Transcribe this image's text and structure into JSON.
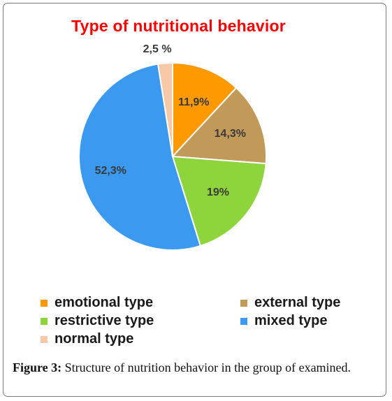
{
  "chart_data": {
    "type": "pie",
    "title": "Type of nutritional behavior",
    "categories": [
      "emotional type",
      "external type",
      "restrictive type",
      "mixed type",
      "normal type"
    ],
    "values": [
      11.9,
      14.3,
      19,
      52.3,
      2.5
    ],
    "labels": [
      "11,9%",
      "14,3%",
      "19%",
      "52,3%",
      "2,5 %"
    ],
    "colors": [
      "#ff9900",
      "#c19a5a",
      "#8ed43c",
      "#3b9af0",
      "#f8c9a8"
    ],
    "legend_position": "bottom"
  },
  "caption": {
    "figure_label": "Figure 3:",
    "text": " Structure of nutrition behavior in the group of examined."
  }
}
